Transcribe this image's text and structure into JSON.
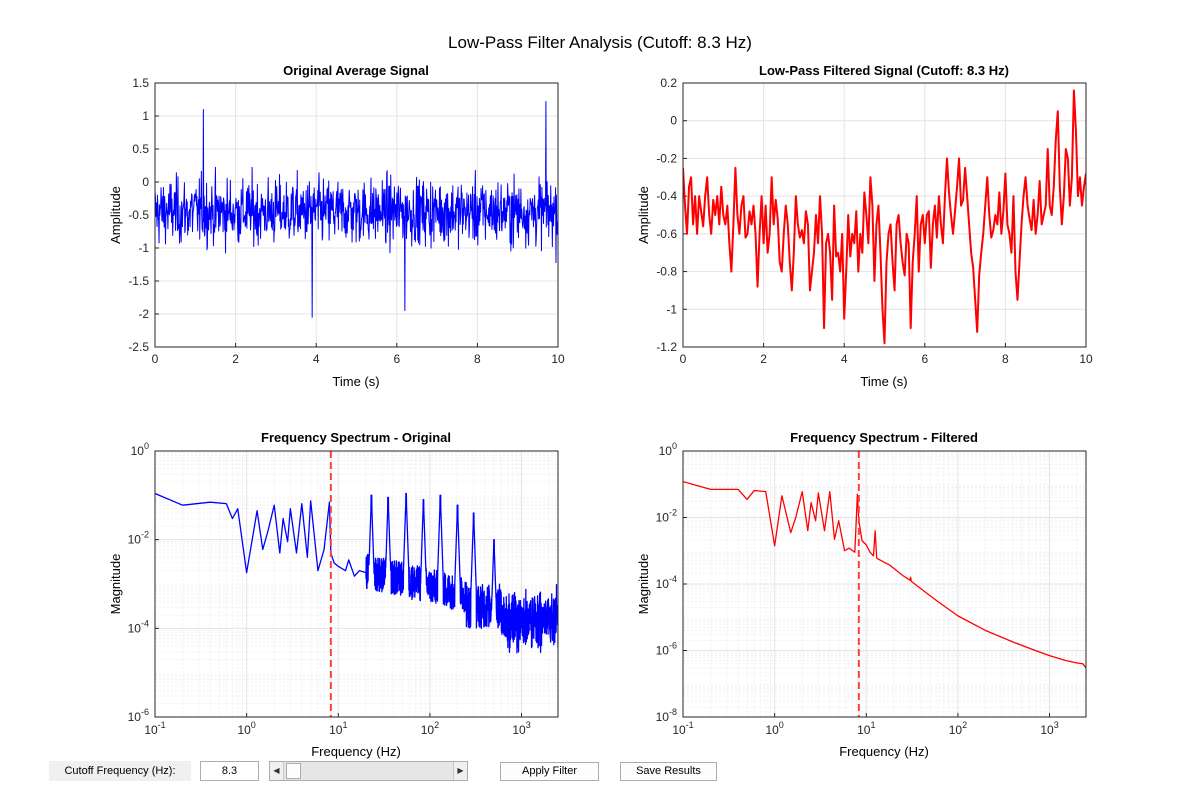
{
  "figure": {
    "title": "Low-Pass Filter Analysis (Cutoff: 8.3 Hz)",
    "colors": {
      "original": "#0000ff",
      "filtered": "#ff0000",
      "cutoff_line": "#ff4040",
      "grid": "#e4e4e4"
    }
  },
  "controls": {
    "cutoff_label": "Cutoff Frequency (Hz):",
    "cutoff_value": "8.3",
    "slider_value": 8.3,
    "slider_min": 0,
    "slider_max": 500,
    "apply_label": "Apply Filter",
    "save_label": "Save Results"
  },
  "chart_data": [
    {
      "id": "orig_time",
      "type": "line",
      "title": "Original Average Signal",
      "xlabel": "Time (s)",
      "ylabel": "Amplitude",
      "xlim": [
        0,
        10
      ],
      "ylim": [
        -2.5,
        1.5
      ],
      "xscale": "linear",
      "yscale": "linear",
      "xticks": [
        0,
        2,
        4,
        6,
        8,
        10
      ],
      "yticks": [
        -2.5,
        -2,
        -1.5,
        -1,
        -0.5,
        0,
        0.5,
        1,
        1.5
      ],
      "grid": true,
      "series": [
        {
          "color": "#0000ff",
          "description": "dense noisy signal, mean about -0.45, typically spanning -1.5 to 0.5, extremes -2.05 and 1.22",
          "sample_count": 1000,
          "mean": -0.45,
          "std": 0.42,
          "min": -2.05,
          "max": 1.22
        }
      ]
    },
    {
      "id": "filt_time",
      "type": "line",
      "title": "Low-Pass Filtered Signal (Cutoff: 8.3 Hz)",
      "xlabel": "Time (s)",
      "ylabel": "Amplitude",
      "xlim": [
        0,
        10
      ],
      "ylim": [
        -1.2,
        0.2
      ],
      "xscale": "linear",
      "yscale": "linear",
      "xticks": [
        0,
        2,
        4,
        6,
        8,
        10
      ],
      "yticks": [
        -1.2,
        -1,
        -0.8,
        -0.6,
        -0.4,
        -0.2,
        0,
        0.2
      ],
      "grid": true,
      "series": [
        {
          "color": "#ff0000",
          "x": [
            0,
            0.05,
            0.1,
            0.15,
            0.2,
            0.25,
            0.3,
            0.35,
            0.4,
            0.45,
            0.5,
            0.55,
            0.6,
            0.65,
            0.7,
            0.75,
            0.8,
            0.85,
            0.9,
            0.95,
            1,
            1.05,
            1.1,
            1.15,
            1.2,
            1.25,
            1.3,
            1.35,
            1.4,
            1.45,
            1.5,
            1.55,
            1.6,
            1.65,
            1.7,
            1.75,
            1.8,
            1.85,
            1.9,
            1.95,
            2,
            2.05,
            2.1,
            2.15,
            2.2,
            2.25,
            2.3,
            2.35,
            2.4,
            2.45,
            2.5,
            2.55,
            2.6,
            2.65,
            2.7,
            2.75,
            2.8,
            2.85,
            2.9,
            2.95,
            3,
            3.05,
            3.1,
            3.15,
            3.2,
            3.25,
            3.3,
            3.35,
            3.4,
            3.45,
            3.5,
            3.55,
            3.6,
            3.65,
            3.7,
            3.75,
            3.8,
            3.85,
            3.9,
            3.95,
            4,
            4.05,
            4.1,
            4.15,
            4.2,
            4.25,
            4.3,
            4.35,
            4.4,
            4.45,
            4.5,
            4.55,
            4.6,
            4.65,
            4.7,
            4.75,
            4.8,
            4.85,
            4.9,
            4.95,
            5,
            5.05,
            5.1,
            5.15,
            5.2,
            5.25,
            5.3,
            5.35,
            5.4,
            5.45,
            5.5,
            5.55,
            5.6,
            5.65,
            5.7,
            5.75,
            5.8,
            5.85,
            5.9,
            5.95,
            6,
            6.05,
            6.1,
            6.15,
            6.2,
            6.25,
            6.3,
            6.35,
            6.4,
            6.45,
            6.5,
            6.55,
            6.6,
            6.65,
            6.7,
            6.75,
            6.8,
            6.85,
            6.9,
            6.95,
            7,
            7.05,
            7.1,
            7.15,
            7.2,
            7.25,
            7.3,
            7.35,
            7.4,
            7.45,
            7.5,
            7.55,
            7.6,
            7.65,
            7.7,
            7.75,
            7.8,
            7.85,
            7.9,
            7.95,
            8,
            8.05,
            8.1,
            8.15,
            8.2,
            8.25,
            8.3,
            8.35,
            8.4,
            8.45,
            8.5,
            8.55,
            8.6,
            8.65,
            8.7,
            8.75,
            8.8,
            8.85,
            8.9,
            8.95,
            9,
            9.05,
            9.1,
            9.15,
            9.2,
            9.25,
            9.3,
            9.35,
            9.4,
            9.45,
            9.5,
            9.55,
            9.6,
            9.65,
            9.7,
            9.75,
            9.8,
            9.85,
            9.9,
            9.95,
            10
          ],
          "y": [
            -0.25,
            -0.45,
            -0.6,
            -0.35,
            -0.3,
            -0.55,
            -0.4,
            -0.6,
            -0.4,
            -0.48,
            -0.56,
            -0.4,
            -0.3,
            -0.5,
            -0.6,
            -0.42,
            -0.5,
            -0.4,
            -0.55,
            -0.35,
            -0.5,
            -0.55,
            -0.45,
            -0.65,
            -0.8,
            -0.55,
            -0.25,
            -0.5,
            -0.6,
            -0.45,
            -0.4,
            -0.62,
            -0.6,
            -0.48,
            -0.55,
            -0.45,
            -0.6,
            -0.88,
            -0.6,
            -0.4,
            -0.65,
            -0.45,
            -0.7,
            -0.6,
            -0.3,
            -0.55,
            -0.42,
            -0.52,
            -0.75,
            -0.8,
            -0.6,
            -0.45,
            -0.55,
            -0.75,
            -0.9,
            -0.7,
            -0.4,
            -0.55,
            -0.62,
            -0.58,
            -0.65,
            -0.48,
            -0.55,
            -0.9,
            -0.8,
            -0.7,
            -0.5,
            -0.65,
            -0.4,
            -0.6,
            -1.1,
            -0.65,
            -0.6,
            -0.7,
            -0.95,
            -0.45,
            -0.72,
            -0.7,
            -0.8,
            -0.6,
            -1.05,
            -0.8,
            -0.5,
            -0.72,
            -0.6,
            -0.65,
            -0.48,
            -0.8,
            -0.6,
            -0.7,
            -0.38,
            -0.5,
            -0.65,
            -0.3,
            -0.45,
            -0.85,
            -0.55,
            -0.45,
            -0.7,
            -1.0,
            -1.18,
            -0.75,
            -0.6,
            -0.55,
            -0.75,
            -0.9,
            -0.55,
            -0.5,
            -0.65,
            -0.75,
            -0.82,
            -0.6,
            -0.65,
            -1.1,
            -0.75,
            -0.6,
            -0.4,
            -0.8,
            -0.55,
            -0.5,
            -0.65,
            -0.5,
            -0.48,
            -0.78,
            -0.55,
            -0.45,
            -0.62,
            -0.4,
            -0.55,
            -0.65,
            -0.4,
            -0.2,
            -0.38,
            -0.5,
            -0.6,
            -0.48,
            -0.35,
            -0.2,
            -0.45,
            -0.42,
            -0.25,
            -0.4,
            -0.55,
            -0.7,
            -0.78,
            -0.95,
            -1.12,
            -0.82,
            -0.7,
            -0.6,
            -0.45,
            -0.3,
            -0.5,
            -0.62,
            -0.58,
            -0.5,
            -0.55,
            -0.38,
            -0.6,
            -0.48,
            -0.28,
            -0.55,
            -0.6,
            -0.7,
            -0.4,
            -0.8,
            -0.95,
            -0.75,
            -0.55,
            -0.4,
            -0.3,
            -0.45,
            -0.52,
            -0.58,
            -0.42,
            -0.6,
            -0.5,
            -0.32,
            -0.55,
            -0.5,
            -0.45,
            -0.15,
            -0.45,
            -0.5,
            -0.35,
            -0.1,
            0.05,
            -0.35,
            -0.55,
            -0.4,
            -0.15,
            -0.2,
            -0.45,
            -0.3,
            0.16,
            -0.05,
            -0.4,
            -0.3,
            -0.45,
            -0.35,
            -0.28
          ]
        }
      ]
    },
    {
      "id": "orig_spec",
      "type": "line",
      "title": "Frequency Spectrum - Original",
      "xlabel": "Frequency (Hz)",
      "ylabel": "Magnitude",
      "xlim": [
        0.1,
        2500
      ],
      "ylim": [
        1e-06,
        1
      ],
      "xscale": "log",
      "yscale": "log",
      "xticks": [
        0.1,
        1,
        10,
        100,
        1000
      ],
      "yticks": [
        1e-06,
        0.0001,
        0.01,
        1
      ],
      "grid": true,
      "cutoff_hz": 8.3,
      "series": [
        {
          "color": "#0000ff",
          "x": [
            0.1,
            0.2,
            0.4,
            0.6,
            0.7,
            0.8,
            1.0,
            1.3,
            1.5,
            1.7,
            2.0,
            2.3,
            2.5,
            2.8,
            3.0,
            3.5,
            4.0,
            4.6,
            5.0,
            6.0,
            7.0,
            8.0,
            8.3,
            9.0,
            10.0,
            12.0,
            13.0,
            15.0,
            17.0,
            20.0
          ],
          "y": [
            0.11,
            0.06,
            0.07,
            0.065,
            0.03,
            0.05,
            0.0018,
            0.045,
            0.006,
            0.015,
            0.06,
            0.005,
            0.03,
            0.009,
            0.05,
            0.005,
            0.065,
            0.004,
            0.075,
            0.002,
            0.006,
            0.07,
            0.005,
            0.003,
            0.0025,
            0.002,
            0.0035,
            0.0015,
            0.002,
            0.0018
          ],
          "description": "smooth decay with resonant peaks at low frequency, noise floor between 1e-4 and 1e-3 above ~300 Hz",
          "peak_frequencies_hz": [
            15,
            23,
            35,
            55,
            85,
            130,
            200,
            300,
            500
          ],
          "peak_magnitudes": [
            0.06,
            0.1,
            0.09,
            0.11,
            0.08,
            0.1,
            0.06,
            0.04,
            0.01
          ],
          "noise_floor": [
            0.0001,
            0.001
          ]
        }
      ]
    },
    {
      "id": "filt_spec",
      "type": "line",
      "title": "Frequency Spectrum - Filtered",
      "xlabel": "Frequency (Hz)",
      "ylabel": "Magnitude",
      "xlim": [
        0.1,
        2500
      ],
      "ylim": [
        1e-08,
        1
      ],
      "xscale": "log",
      "yscale": "log",
      "xticks": [
        0.1,
        1,
        10,
        100,
        1000
      ],
      "yticks": [
        1e-08,
        1e-06,
        0.0001,
        0.01,
        1
      ],
      "grid": true,
      "cutoff_hz": 8.3,
      "series": [
        {
          "color": "#ff0000",
          "x": [
            0.1,
            0.2,
            0.4,
            0.5,
            0.6,
            0.8,
            1.0,
            1.2,
            1.5,
            1.7,
            2.0,
            2.3,
            2.5,
            2.8,
            3.0,
            3.5,
            4.0,
            4.5,
            5.0,
            5.8,
            6.5,
            7.5,
            8.0,
            8.3,
            9.0,
            10,
            11,
            12,
            12.5,
            13,
            15,
            18,
            18.5,
            19,
            25,
            30,
            30.5,
            31,
            40,
            60,
            100,
            200,
            400,
            700,
            1000,
            1500,
            2000,
            2300,
            2400,
            2500
          ],
          "y": [
            0.12,
            0.07,
            0.07,
            0.035,
            0.065,
            0.06,
            0.0014,
            0.045,
            0.0035,
            0.01,
            0.06,
            0.004,
            0.028,
            0.008,
            0.055,
            0.004,
            0.06,
            0.0022,
            0.008,
            0.001,
            0.0012,
            0.0009,
            0.05,
            0.008,
            0.002,
            0.0015,
            0.0009,
            0.0007,
            0.004,
            0.0006,
            0.00048,
            0.00037,
            0.00035,
            0.00033,
            0.00018,
            0.00013,
            0.00016,
            0.00012,
            7e-05,
            3e-05,
            1.1e-05,
            4e-06,
            1.8e-06,
            1e-06,
            7e-07,
            5e-07,
            4.2e-07,
            4e-07,
            3.5e-07,
            3e-07
          ]
        }
      ]
    }
  ]
}
